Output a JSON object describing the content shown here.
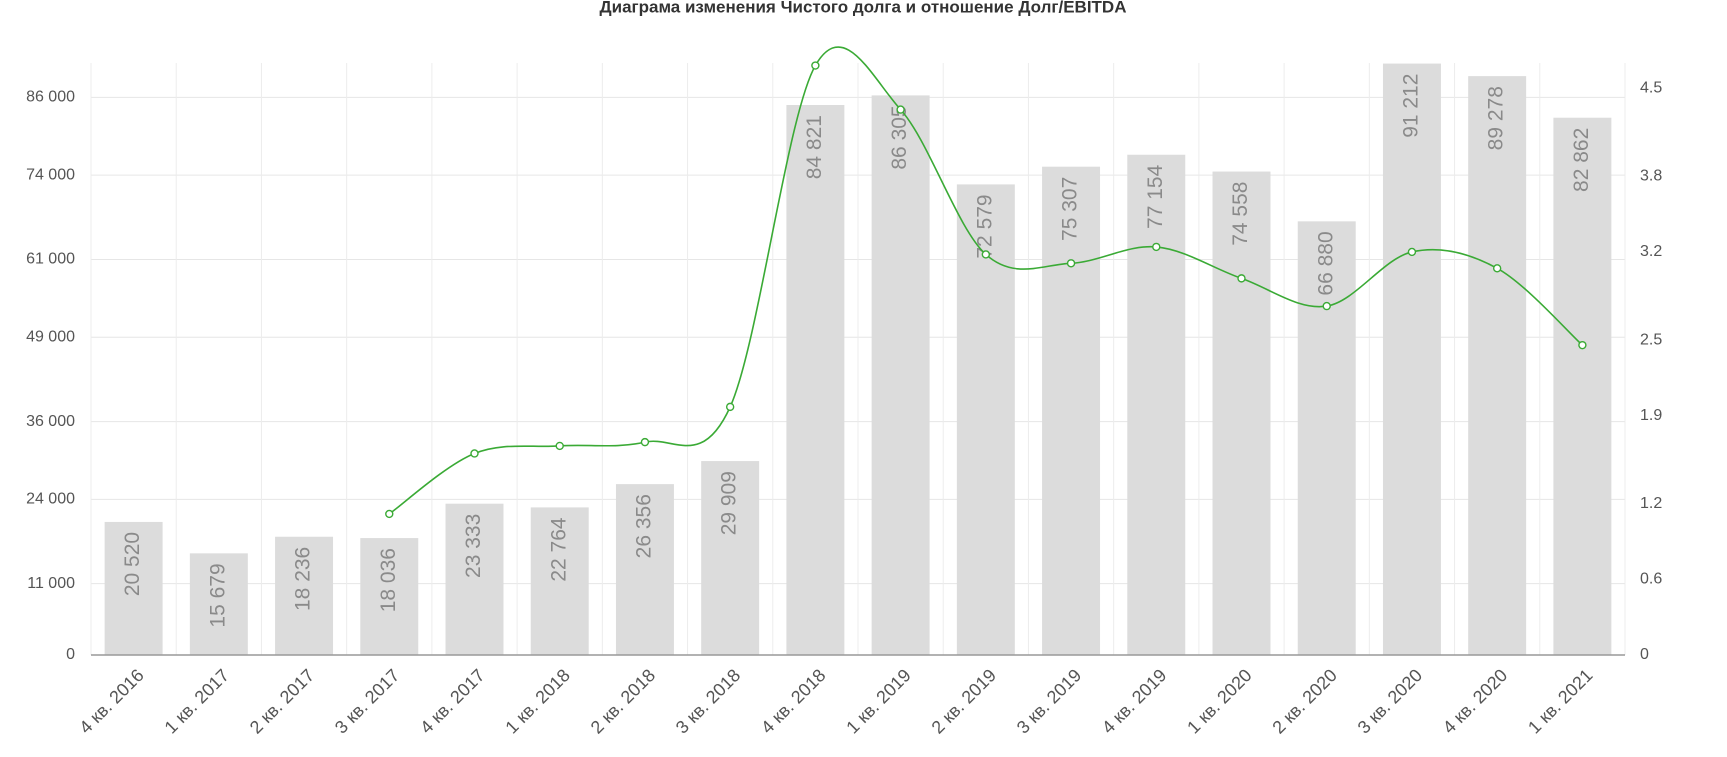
{
  "chart_data": {
    "type": "bar_line",
    "title": "Диаграма изменения Чистого долга и отношение Долг/EBITDA",
    "categories": [
      "4 кв. 2016",
      "1 кв. 2017",
      "2 кв. 2017",
      "3 кв. 2017",
      "4 кв. 2017",
      "1 кв. 2018",
      "2 кв. 2018",
      "3 кв. 2018",
      "4 кв. 2018",
      "1 кв. 2019",
      "2 кв. 2019",
      "3 кв. 2019",
      "4 кв. 2019",
      "1 кв. 2020",
      "2 кв. 2020",
      "3 кв. 2020",
      "4 кв. 2020",
      "1 кв. 2021"
    ],
    "series": [
      {
        "type": "bar",
        "color": "#dcdcdc",
        "values": [
          20520,
          15679,
          18236,
          18036,
          23333,
          22764,
          26356,
          29909,
          84821,
          86305,
          72579,
          75307,
          77154,
          74558,
          66880,
          91212,
          89278,
          82862
        ],
        "value_labels": [
          "20 520",
          "15 679",
          "18 236",
          "18 036",
          "23 333",
          "22 764",
          "26 356",
          "29 909",
          "84 821",
          "86 305",
          "72 579",
          "75 307",
          "77 154",
          "74 558",
          "66 880",
          "91 212",
          "89 278",
          "82 862"
        ]
      },
      {
        "type": "line",
        "axis": "y2",
        "color": "#3aaa35",
        "values": [
          null,
          null,
          null,
          1.12,
          1.6,
          1.66,
          1.69,
          1.97,
          4.68,
          4.33,
          3.18,
          3.11,
          3.24,
          2.99,
          2.77,
          3.2,
          3.07,
          2.46
        ]
      }
    ],
    "ylim": [
      0,
      91300
    ],
    "yticks": [
      0,
      {
        "value": 11000,
        "label": "11 000"
      },
      {
        "value": 24000,
        "label": "24 000"
      },
      {
        "value": 36000,
        "label": "36 000"
      },
      {
        "value": 49000,
        "label": "49 000"
      },
      {
        "value": 61000,
        "label": "61 000"
      },
      {
        "value": 74000,
        "label": "74 000"
      },
      {
        "value": 86000,
        "label": "86 000"
      }
    ],
    "y2lim": [
      0,
      4.7
    ],
    "y2ticks": [
      0,
      0.6,
      1.2,
      1.9,
      2.5,
      3.2,
      3.8,
      4.5
    ],
    "grid": true
  }
}
